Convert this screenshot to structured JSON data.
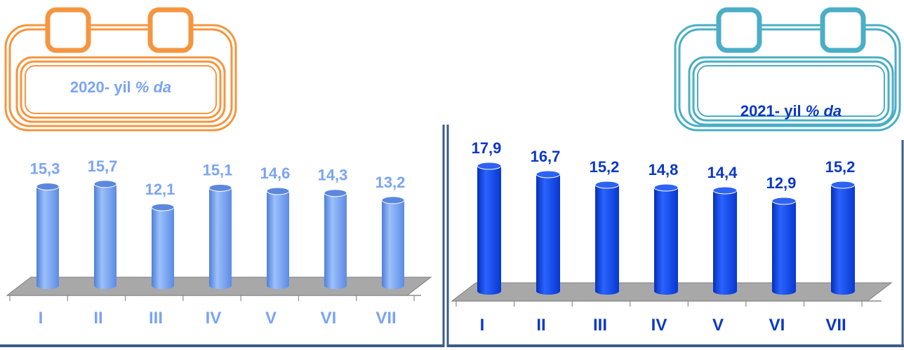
{
  "colors": {
    "left_accent": "#f5953f",
    "left_bar": "#6f9ff3",
    "left_label": "#7aa4f5",
    "right_accent": "#4aaec6",
    "right_bar": "#0b3fe0",
    "right_label": "#0b38c8",
    "floor": "#a8a8a8",
    "frame": "#3b5d86"
  },
  "icons": [
    "calendar-icon-left",
    "calendar-icon-right"
  ],
  "panels": [
    {
      "calendar": {
        "year_text": "2020- yil",
        "unit_text": "% da"
      }
    },
    {
      "calendar": {
        "year_text": "2021- yil",
        "unit_text": "% da"
      }
    }
  ],
  "chart_data": [
    {
      "type": "bar",
      "title": "2020- yil % da",
      "categories": [
        "I",
        "II",
        "III",
        "IV",
        "V",
        "VI",
        "VII"
      ],
      "values": [
        15.3,
        15.7,
        12.1,
        15.1,
        14.6,
        14.3,
        13.2
      ],
      "value_labels": [
        "15,3",
        "15,7",
        "12,1",
        "15,1",
        "14,6",
        "14,3",
        "13,2"
      ],
      "grid": false,
      "style": "3d-cylinder"
    },
    {
      "type": "bar",
      "title": "2021- yil % da",
      "categories": [
        "I",
        "II",
        "III",
        "IV",
        "V",
        "VI",
        "VII"
      ],
      "values": [
        17.9,
        16.7,
        15.2,
        14.8,
        14.4,
        12.9,
        15.2
      ],
      "value_labels": [
        "17,9",
        "16,7",
        "15,2",
        "14,8",
        "14,4",
        "12,9",
        "15,2"
      ],
      "grid": false,
      "style": "3d-cylinder"
    }
  ]
}
